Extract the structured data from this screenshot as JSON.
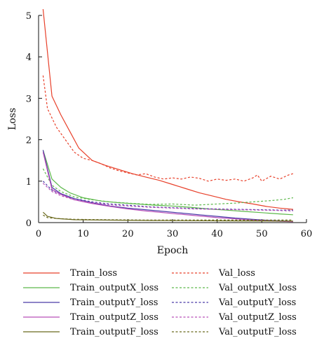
{
  "chart_data": {
    "type": "line",
    "xlabel": "Epoch",
    "ylabel": "Loss",
    "xlim": [
      0,
      60
    ],
    "ylim": [
      0,
      5
    ],
    "xticks": [
      0,
      10,
      20,
      30,
      40,
      50,
      60
    ],
    "yticks": [
      0,
      1,
      2,
      3,
      4,
      5
    ],
    "grid": false,
    "legend_position": "bottom",
    "series": [
      {
        "name": "Train_loss",
        "color": "#e8402a",
        "dash": "solid",
        "points": [
          [
            1,
            5.15
          ],
          [
            3,
            3.05
          ],
          [
            5,
            2.6
          ],
          [
            7,
            2.2
          ],
          [
            9,
            1.8
          ],
          [
            12,
            1.5
          ],
          [
            15,
            1.38
          ],
          [
            18,
            1.28
          ],
          [
            21,
            1.18
          ],
          [
            24,
            1.1
          ],
          [
            27,
            1.02
          ],
          [
            30,
            0.92
          ],
          [
            33,
            0.82
          ],
          [
            36,
            0.72
          ],
          [
            39,
            0.64
          ],
          [
            42,
            0.56
          ],
          [
            45,
            0.5
          ],
          [
            48,
            0.45
          ],
          [
            51,
            0.39
          ],
          [
            54,
            0.35
          ],
          [
            57,
            0.32
          ]
        ]
      },
      {
        "name": "Val_loss",
        "color": "#e8402a",
        "dash": "dotted",
        "points": [
          [
            1,
            3.55
          ],
          [
            2,
            2.75
          ],
          [
            4,
            2.3
          ],
          [
            6,
            2.0
          ],
          [
            8,
            1.7
          ],
          [
            10,
            1.55
          ],
          [
            12,
            1.5
          ],
          [
            14,
            1.42
          ],
          [
            16,
            1.32
          ],
          [
            18,
            1.25
          ],
          [
            20,
            1.2
          ],
          [
            22,
            1.15
          ],
          [
            24,
            1.18
          ],
          [
            26,
            1.1
          ],
          [
            28,
            1.05
          ],
          [
            30,
            1.08
          ],
          [
            32,
            1.05
          ],
          [
            34,
            1.1
          ],
          [
            36,
            1.07
          ],
          [
            38,
            1.0
          ],
          [
            40,
            1.05
          ],
          [
            42,
            1.02
          ],
          [
            44,
            1.05
          ],
          [
            46,
            1.0
          ],
          [
            48,
            1.08
          ],
          [
            49,
            1.15
          ],
          [
            50,
            1.0
          ],
          [
            52,
            1.12
          ],
          [
            54,
            1.05
          ],
          [
            56,
            1.15
          ],
          [
            57,
            1.18
          ]
        ]
      },
      {
        "name": "Train_outputX_loss",
        "color": "#5cb84a",
        "dash": "solid",
        "points": [
          [
            1,
            1.75
          ],
          [
            3,
            1.05
          ],
          [
            5,
            0.85
          ],
          [
            7,
            0.72
          ],
          [
            10,
            0.6
          ],
          [
            14,
            0.52
          ],
          [
            18,
            0.48
          ],
          [
            22,
            0.45
          ],
          [
            26,
            0.42
          ],
          [
            30,
            0.4
          ],
          [
            34,
            0.37
          ],
          [
            38,
            0.33
          ],
          [
            42,
            0.3
          ],
          [
            46,
            0.27
          ],
          [
            50,
            0.24
          ],
          [
            54,
            0.21
          ],
          [
            57,
            0.19
          ]
        ]
      },
      {
        "name": "Val_outputX_loss",
        "color": "#5cb84a",
        "dash": "dotted",
        "points": [
          [
            1,
            1.3
          ],
          [
            3,
            0.9
          ],
          [
            5,
            0.75
          ],
          [
            8,
            0.62
          ],
          [
            12,
            0.55
          ],
          [
            16,
            0.5
          ],
          [
            20,
            0.47
          ],
          [
            25,
            0.44
          ],
          [
            30,
            0.45
          ],
          [
            35,
            0.42
          ],
          [
            40,
            0.45
          ],
          [
            44,
            0.47
          ],
          [
            48,
            0.5
          ],
          [
            52,
            0.53
          ],
          [
            55,
            0.56
          ],
          [
            57,
            0.6
          ]
        ]
      },
      {
        "name": "Train_outputY_loss",
        "color": "#4a3aa8",
        "dash": "solid",
        "points": [
          [
            1,
            1.75
          ],
          [
            3,
            0.85
          ],
          [
            5,
            0.7
          ],
          [
            8,
            0.58
          ],
          [
            12,
            0.48
          ],
          [
            16,
            0.4
          ],
          [
            20,
            0.35
          ],
          [
            24,
            0.31
          ],
          [
            28,
            0.27
          ],
          [
            32,
            0.23
          ],
          [
            36,
            0.19
          ],
          [
            40,
            0.15
          ],
          [
            44,
            0.11
          ],
          [
            48,
            0.08
          ],
          [
            52,
            0.05
          ],
          [
            57,
            0.03
          ]
        ]
      },
      {
        "name": "Val_outputY_loss",
        "color": "#4a3aa8",
        "dash": "dotted",
        "points": [
          [
            1,
            1.0
          ],
          [
            3,
            0.78
          ],
          [
            5,
            0.68
          ],
          [
            8,
            0.58
          ],
          [
            12,
            0.5
          ],
          [
            16,
            0.45
          ],
          [
            20,
            0.42
          ],
          [
            25,
            0.38
          ],
          [
            30,
            0.36
          ],
          [
            35,
            0.34
          ],
          [
            40,
            0.33
          ],
          [
            45,
            0.32
          ],
          [
            50,
            0.31
          ],
          [
            54,
            0.3
          ],
          [
            57,
            0.3
          ]
        ]
      },
      {
        "name": "Train_outputZ_loss",
        "color": "#b84fb8",
        "dash": "solid",
        "points": [
          [
            1,
            1.7
          ],
          [
            3,
            0.8
          ],
          [
            5,
            0.68
          ],
          [
            8,
            0.55
          ],
          [
            12,
            0.46
          ],
          [
            16,
            0.39
          ],
          [
            20,
            0.33
          ],
          [
            24,
            0.28
          ],
          [
            28,
            0.24
          ],
          [
            32,
            0.2
          ],
          [
            36,
            0.16
          ],
          [
            40,
            0.12
          ],
          [
            44,
            0.09
          ],
          [
            48,
            0.06
          ],
          [
            52,
            0.04
          ],
          [
            57,
            0.02
          ]
        ]
      },
      {
        "name": "Val_outputZ_loss",
        "color": "#b84fb8",
        "dash": "dotted",
        "points": [
          [
            1,
            0.95
          ],
          [
            3,
            0.75
          ],
          [
            5,
            0.65
          ],
          [
            8,
            0.55
          ],
          [
            12,
            0.48
          ],
          [
            16,
            0.43
          ],
          [
            20,
            0.4
          ],
          [
            25,
            0.37
          ],
          [
            30,
            0.35
          ],
          [
            35,
            0.33
          ],
          [
            40,
            0.32
          ],
          [
            45,
            0.31
          ],
          [
            50,
            0.3
          ],
          [
            54,
            0.29
          ],
          [
            57,
            0.28
          ]
        ]
      },
      {
        "name": "Train_outputF_loss",
        "color": "#6b6a1e",
        "dash": "solid",
        "points": [
          [
            1,
            0.25
          ],
          [
            2,
            0.15
          ],
          [
            4,
            0.1
          ],
          [
            8,
            0.07
          ],
          [
            15,
            0.06
          ],
          [
            25,
            0.05
          ],
          [
            35,
            0.045
          ],
          [
            45,
            0.04
          ],
          [
            57,
            0.035
          ]
        ]
      },
      {
        "name": "Val_outputF_loss",
        "color": "#6b6a1e",
        "dash": "dotted",
        "points": [
          [
            1,
            0.18
          ],
          [
            2,
            0.12
          ],
          [
            4,
            0.1
          ],
          [
            8,
            0.08
          ],
          [
            15,
            0.07
          ],
          [
            25,
            0.06
          ],
          [
            35,
            0.06
          ],
          [
            45,
            0.06
          ],
          [
            57,
            0.06
          ]
        ]
      }
    ]
  }
}
